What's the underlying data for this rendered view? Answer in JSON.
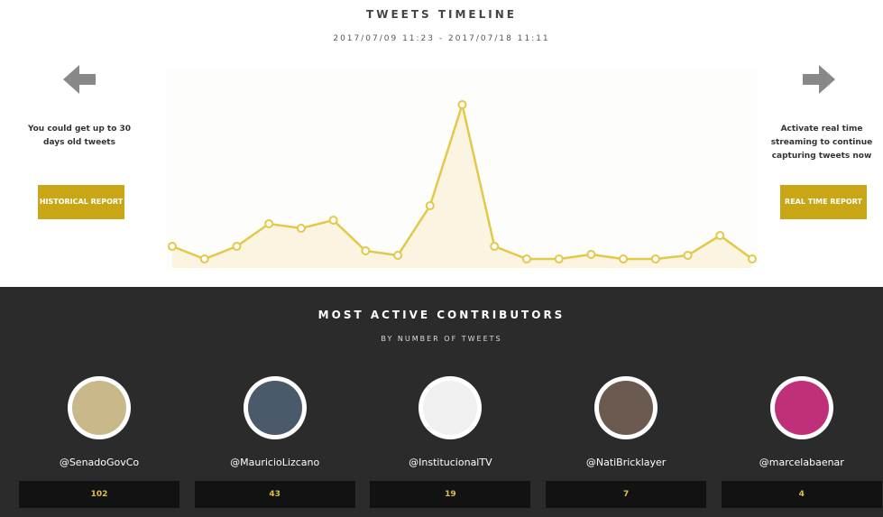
{
  "header": {
    "title": "TWEETS TIMELINE",
    "date_range": "2017/07/09 11:23 - 2017/07/18 11:11"
  },
  "left_panel": {
    "text": "You could get up to 30 days old tweets",
    "button": "HISTORICAL REPORT"
  },
  "right_panel": {
    "text": "Activate real time streaming to continue capturing tweets now",
    "button": "REAL TIME REPORT"
  },
  "chart_data": {
    "type": "line",
    "color": "#e3c84a",
    "values": [
      2.4,
      1,
      2.4,
      4.9,
      4.4,
      5.3,
      1.9,
      1.4,
      6.9,
      18.1,
      2.4,
      1,
      1,
      1.5,
      1,
      1,
      1.4,
      3.6,
      1
    ]
  },
  "contributors": {
    "title": "MOST ACTIVE CONTRIBUTORS",
    "subtitle": "BY NUMBER OF TWEETS",
    "items": [
      {
        "handle": "@SenadoGovCo",
        "tweets": 102
      },
      {
        "handle": "@MauricioLizcano",
        "tweets": 43
      },
      {
        "handle": "@InstitucionalTV",
        "tweets": 19
      },
      {
        "handle": "@NatiBricklayer",
        "tweets": 7
      },
      {
        "handle": "@marcelabaenar",
        "tweets": 4
      }
    ]
  }
}
